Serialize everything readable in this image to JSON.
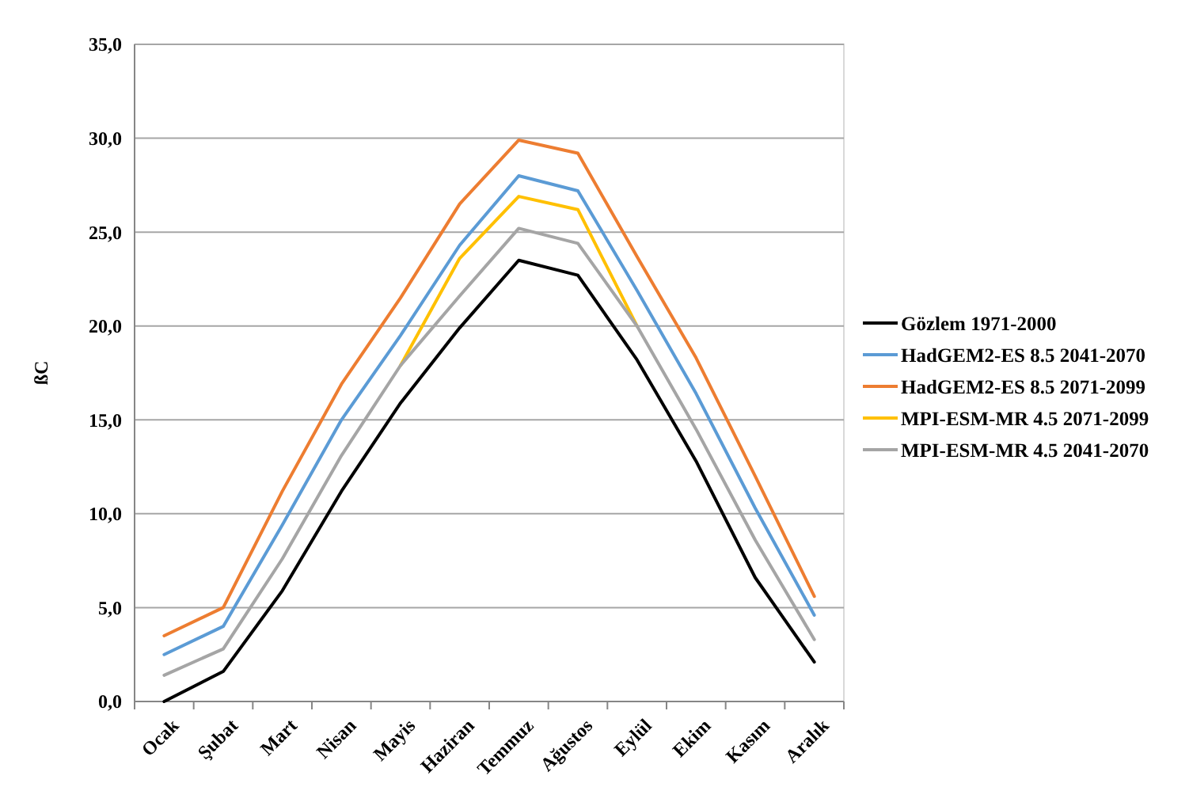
{
  "chart_data": {
    "type": "line",
    "ylabel": "ßC",
    "categories": [
      "Ocak",
      "Şubat",
      "Mart",
      "Nisan",
      "Mayis",
      "Haziran",
      "Temmuz",
      "Ağustos",
      "Eylül",
      "Ekim",
      "Kasım",
      "Aralık"
    ],
    "series": [
      {
        "name": "Gözlem 1971-2000",
        "color": "#000000",
        "values": [
          0.0,
          1.6,
          5.9,
          11.2,
          15.9,
          19.9,
          23.5,
          22.7,
          18.2,
          12.8,
          6.6,
          2.1
        ]
      },
      {
        "name": "HadGEM2-ES 8.5 2041-2070",
        "color": "#5b9bd5",
        "values": [
          2.5,
          4.0,
          9.4,
          15.0,
          19.5,
          24.3,
          28.0,
          27.2,
          21.9,
          16.4,
          10.3,
          4.6
        ]
      },
      {
        "name": "HadGEM2-ES 8.5 2071-2099",
        "color": "#ed7d31",
        "values": [
          3.5,
          5.0,
          11.2,
          16.9,
          21.5,
          26.5,
          29.9,
          29.2,
          23.7,
          18.3,
          12.0,
          5.6
        ]
      },
      {
        "name": "MPI-ESM-MR 4.5 2071-2099",
        "color": "#ffc000",
        "values": [
          null,
          null,
          null,
          null,
          17.9,
          23.6,
          26.9,
          26.2,
          20.0,
          null,
          null,
          null
        ]
      },
      {
        "name": "MPI-ESM-MR 4.5 2041-2070",
        "color": "#a5a5a5",
        "values": [
          1.4,
          2.8,
          7.6,
          13.1,
          17.9,
          21.6,
          25.2,
          24.4,
          20.0,
          14.5,
          8.6,
          3.3
        ]
      }
    ],
    "ylim": [
      0,
      35
    ],
    "yticks": [
      {
        "value": 0,
        "label": "0,0"
      },
      {
        "value": 5,
        "label": "5,0"
      },
      {
        "value": 10,
        "label": "10,0"
      },
      {
        "value": 15,
        "label": "15,0"
      },
      {
        "value": 20,
        "label": "20,0"
      },
      {
        "value": 25,
        "label": "25,0"
      },
      {
        "value": 30,
        "label": "30,0"
      },
      {
        "value": 35,
        "label": "35,0"
      }
    ],
    "grid": "y",
    "legend": "right",
    "marker": "none",
    "line_style": "solid"
  }
}
